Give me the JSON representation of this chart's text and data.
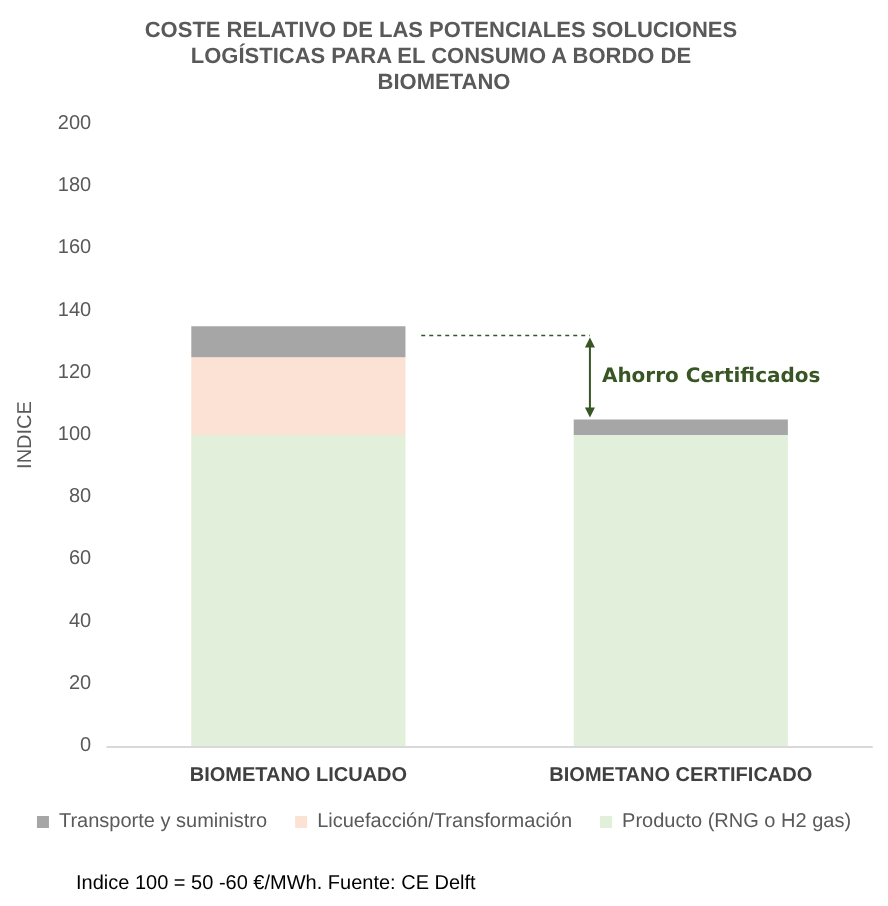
{
  "chart_data": {
    "type": "bar",
    "stacked": true,
    "title": "COSTE RELATIVO DE LAS POTENCIALES SOLUCIONES LOGÍSTICAS PARA EL CONSUMO A BORDO DE BIOMETANO",
    "ylabel": "INDICE",
    "categories": [
      "BIOMETANO LICUADO",
      "BIOMETANO CERTIFICADO"
    ],
    "series": [
      {
        "name": "Producto (RNG o H2 gas)",
        "color": "#e2efda",
        "values": [
          100,
          100
        ]
      },
      {
        "name": "Licuefacción/Transformación",
        "color": "#fbe2d5",
        "values": [
          25,
          0
        ]
      },
      {
        "name": "Transporte y suministro",
        "color": "#a6a6a6",
        "values": [
          10,
          5
        ]
      }
    ],
    "ylim": [
      0,
      200
    ],
    "yticks": [
      0,
      20,
      40,
      60,
      80,
      100,
      120,
      140,
      160,
      180,
      200
    ],
    "grid": false,
    "legend": "bottom",
    "ref_lines": [
      {
        "axis": "y",
        "value": 132,
        "label": "Ahorro Certificados",
        "color": "#375623",
        "line_style": "dashed"
      }
    ],
    "annotations": [
      "Indice 100 = 50 -60 €/MWh. Fuente: CE Delft"
    ]
  }
}
